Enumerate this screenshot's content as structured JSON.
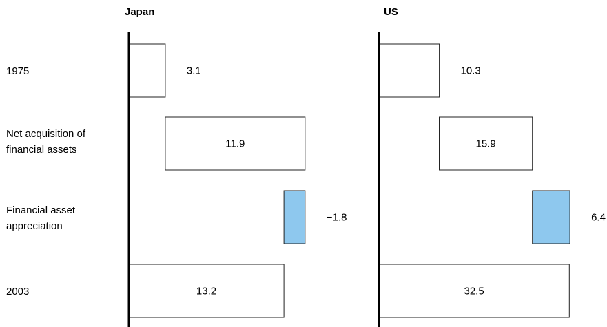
{
  "chart_data": {
    "type": "bar",
    "subtype": "waterfall",
    "categories": [
      "1975",
      "Net acquisition of financial assets",
      "Financial asset appreciation",
      "2003"
    ],
    "panels": [
      {
        "title": "Japan",
        "steps": [
          {
            "category": "1975",
            "value": 3.1,
            "label": "3.1",
            "kind": "total"
          },
          {
            "category": "Net acquisition of financial assets",
            "value": 11.9,
            "label": "11.9",
            "kind": "increment"
          },
          {
            "category": "Financial asset appreciation",
            "value": -1.8,
            "label": "−1.8",
            "kind": "increment"
          },
          {
            "category": "2003",
            "value": 13.2,
            "label": "13.2",
            "kind": "total"
          }
        ]
      },
      {
        "title": "US",
        "steps": [
          {
            "category": "1975",
            "value": 10.3,
            "label": "10.3",
            "kind": "total"
          },
          {
            "category": "Net acquisition of financial assets",
            "value": 15.9,
            "label": "15.9",
            "kind": "increment"
          },
          {
            "category": "Financial asset appreciation",
            "value": 6.4,
            "label": "6.4",
            "kind": "increment"
          },
          {
            "category": "2003",
            "value": 32.5,
            "label": "32.5",
            "kind": "total"
          }
        ]
      }
    ],
    "row_labels": [
      [
        "1975"
      ],
      [
        "Net acquisition of",
        "financial assets"
      ],
      [
        "Financial asset",
        "appreciation"
      ],
      [
        "2003"
      ]
    ],
    "colors": {
      "bar_fill": "#ffffff",
      "bar_stroke": "#222222",
      "highlight_fill": "#8ec8ee",
      "axis": "#000000"
    },
    "grid": false,
    "legend": "none"
  }
}
